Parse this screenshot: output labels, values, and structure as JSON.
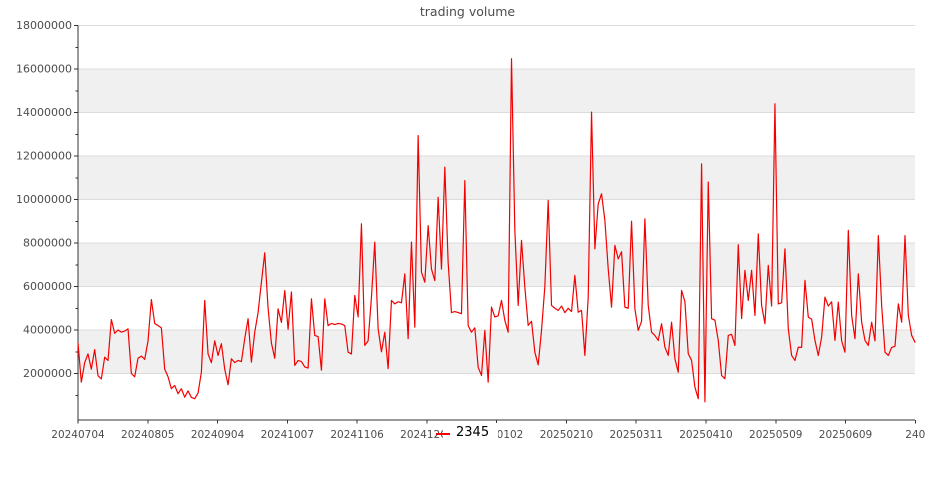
{
  "title": "trading volume",
  "legend": {
    "label": "2345"
  },
  "colors": {
    "line": "#f40000",
    "band": "#f0f0f0",
    "grid": "#dcdcdc",
    "spine": "#333333",
    "tick_label": "#4d4d4d",
    "title": "#4d4d4d",
    "legend_text": "#000000",
    "background": "#ffffff"
  },
  "chart_data": {
    "type": "line",
    "title": "trading volume",
    "xlabel": "",
    "ylabel": "",
    "grid": "horizontal",
    "points_are": "consecutive daily trading-volume values",
    "x_tick_labels": [
      "20240704",
      "20240805",
      "20240904",
      "20241007",
      "20241106",
      "20241206",
      "20250102",
      "20250210",
      "20250311",
      "20250410",
      "20250509",
      "20250609",
      "240"
    ],
    "y_tick_values": [
      2000000,
      4000000,
      6000000,
      8000000,
      10000000,
      12000000,
      14000000,
      16000000,
      18000000
    ],
    "y_minor_tick_step": 1000000,
    "ylim": [
      -150000,
      18000000
    ],
    "band_fill_ranges_millions": [
      [
        2,
        4
      ],
      [
        6,
        8
      ],
      [
        10,
        12
      ],
      [
        14,
        16
      ]
    ],
    "legend_position": "below x-axis, center",
    "series": [
      {
        "name": "2345",
        "color": "#f40000",
        "unit_multiplier": 1000000,
        "values_millions": [
          3.4,
          1.6,
          2.5,
          2.9,
          2.2,
          3.1,
          1.9,
          1.75,
          2.75,
          2.6,
          4.48,
          3.85,
          4.0,
          3.9,
          3.95,
          4.05,
          2.0,
          1.85,
          2.7,
          2.8,
          2.65,
          3.5,
          5.4,
          4.3,
          4.2,
          4.1,
          2.2,
          1.85,
          1.3,
          1.45,
          1.07,
          1.3,
          0.91,
          1.2,
          0.9,
          0.84,
          1.1,
          2.06,
          5.36,
          2.9,
          2.5,
          3.5,
          2.83,
          3.37,
          2.2,
          1.48,
          2.68,
          2.5,
          2.6,
          2.55,
          3.6,
          4.52,
          2.52,
          3.9,
          4.8,
          6.2,
          7.55,
          5.0,
          3.4,
          2.7,
          4.97,
          4.35,
          5.81,
          4.03,
          5.75,
          2.37,
          2.6,
          2.55,
          2.3,
          2.25,
          5.43,
          3.75,
          3.7,
          2.15,
          5.43,
          4.2,
          4.3,
          4.25,
          4.3,
          4.28,
          4.2,
          2.98,
          2.9,
          5.59,
          4.6,
          8.88,
          3.29,
          3.5,
          5.5,
          8.04,
          4.06,
          3.0,
          3.9,
          2.22,
          5.36,
          5.2,
          5.3,
          5.25,
          6.58,
          3.6,
          8.04,
          4.13,
          12.94,
          6.66,
          6.2,
          8.8,
          6.8,
          6.27,
          10.1,
          6.8,
          11.49,
          7.1,
          4.8,
          4.85,
          4.8,
          4.75,
          10.87,
          4.2,
          3.9,
          4.1,
          2.29,
          1.91,
          3.98,
          1.6,
          5.05,
          4.6,
          4.65,
          5.36,
          4.44,
          3.9,
          16.47,
          8.58,
          5.13,
          8.12,
          5.97,
          4.21,
          4.4,
          2.98,
          2.4,
          3.98,
          6.0,
          9.96,
          5.13,
          5.0,
          4.9,
          5.1,
          4.8,
          5.0,
          4.85,
          6.51,
          4.82,
          4.9,
          2.83,
          5.5,
          14.02,
          7.73,
          9.8,
          10.26,
          9.04,
          6.81,
          5.05,
          7.89,
          7.27,
          7.6,
          5.05,
          5.0,
          9.0,
          4.97,
          3.98,
          4.4,
          9.11,
          5.13,
          3.9,
          3.75,
          3.52,
          4.29,
          3.21,
          2.83,
          4.36,
          2.68,
          2.06,
          5.82,
          5.3,
          2.91,
          2.6,
          1.37,
          0.84,
          11.64,
          0.7,
          10.8,
          4.52,
          4.45,
          3.52,
          1.91,
          1.76,
          3.75,
          3.8,
          3.29,
          7.92,
          4.52,
          6.74,
          5.36,
          6.74,
          4.67,
          8.42,
          5.13,
          4.29,
          6.97,
          5.1,
          14.4,
          5.2,
          5.25,
          7.73,
          4.06,
          2.83,
          2.6,
          3.21,
          3.2,
          6.28,
          4.59,
          4.5,
          3.52,
          2.83,
          3.67,
          5.51,
          5.1,
          5.3,
          3.52,
          5.28,
          3.5,
          2.98,
          8.58,
          4.67,
          3.6,
          6.58,
          4.36,
          3.52,
          3.29,
          4.36,
          3.5,
          8.34,
          5.13,
          2.98,
          2.83,
          3.2,
          3.25,
          5.2,
          4.36,
          8.34,
          4.67,
          3.75,
          3.44
        ]
      }
    ]
  }
}
